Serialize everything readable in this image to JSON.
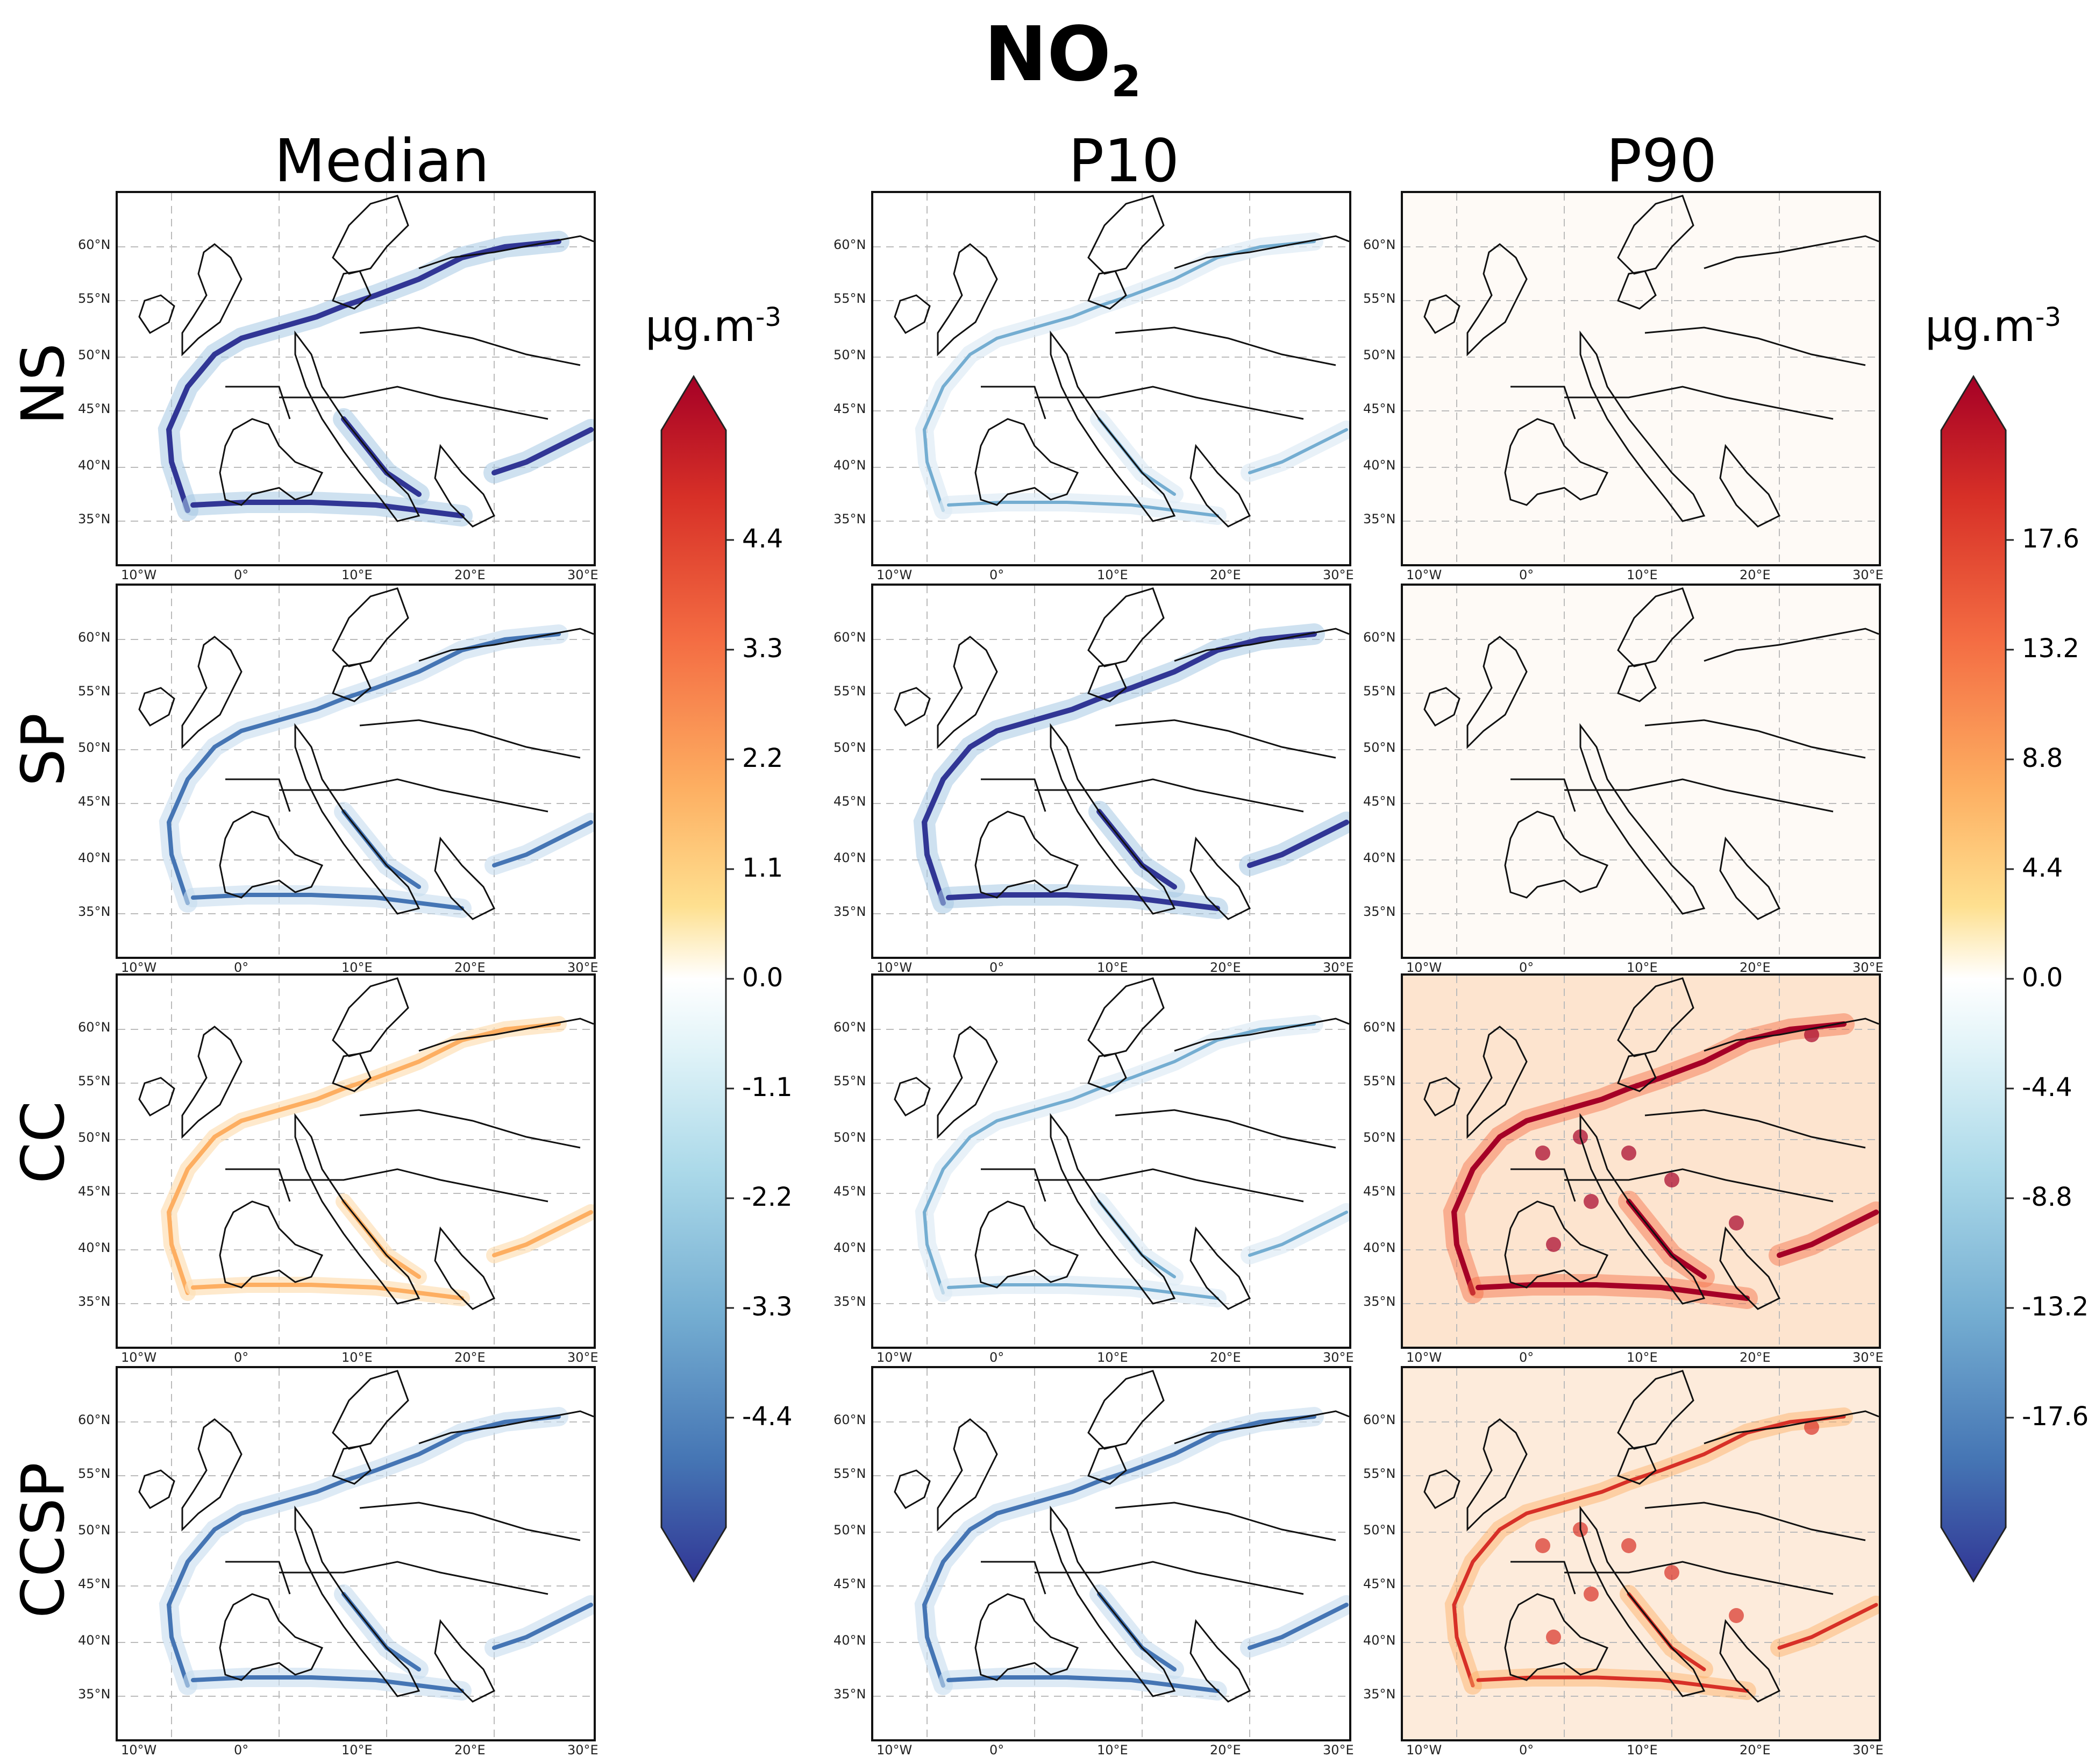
{
  "figure": {
    "title_main": "NO",
    "title_sub": "2",
    "columns": [
      "Median",
      "P10",
      "P90"
    ],
    "rows": [
      "NS",
      "SP",
      "CC",
      "CCSP"
    ]
  },
  "axes": {
    "lat_ticks": [
      "60°N",
      "55°N",
      "50°N",
      "45°N",
      "40°N",
      "35°N"
    ],
    "lon_ticks": [
      "10°W",
      "0°",
      "10°E",
      "20°E",
      "30°E"
    ]
  },
  "colorbar_left": {
    "unit_main": "µg.m",
    "unit_sup": "-3",
    "ticks": [
      "4.4",
      "3.3",
      "2.2",
      "1.1",
      "0.0",
      "-1.1",
      "-2.2",
      "-3.3",
      "-4.4"
    ],
    "range": [
      -5.5,
      5.5
    ]
  },
  "colorbar_right": {
    "unit_main": "µg.m",
    "unit_sup": "-3",
    "ticks": [
      "17.6",
      "13.2",
      "8.8",
      "4.4",
      "0.0",
      "-4.4",
      "-8.8",
      "-13.2",
      "-17.6"
    ],
    "range": [
      -22,
      22
    ]
  },
  "panel_fields": [
    [
      "blue-strong",
      "blue-light",
      "blank"
    ],
    [
      "blue-medium",
      "blue-strong",
      "blank"
    ],
    [
      "orange-light",
      "blue-light",
      "red-strong"
    ],
    [
      "blue-medium",
      "blue-medium",
      "red-medium"
    ]
  ],
  "colors": {
    "blue_dark": "#313695",
    "blue_mid": "#4575b4",
    "red_dark": "#a50026",
    "orange": "#f46d43"
  }
}
